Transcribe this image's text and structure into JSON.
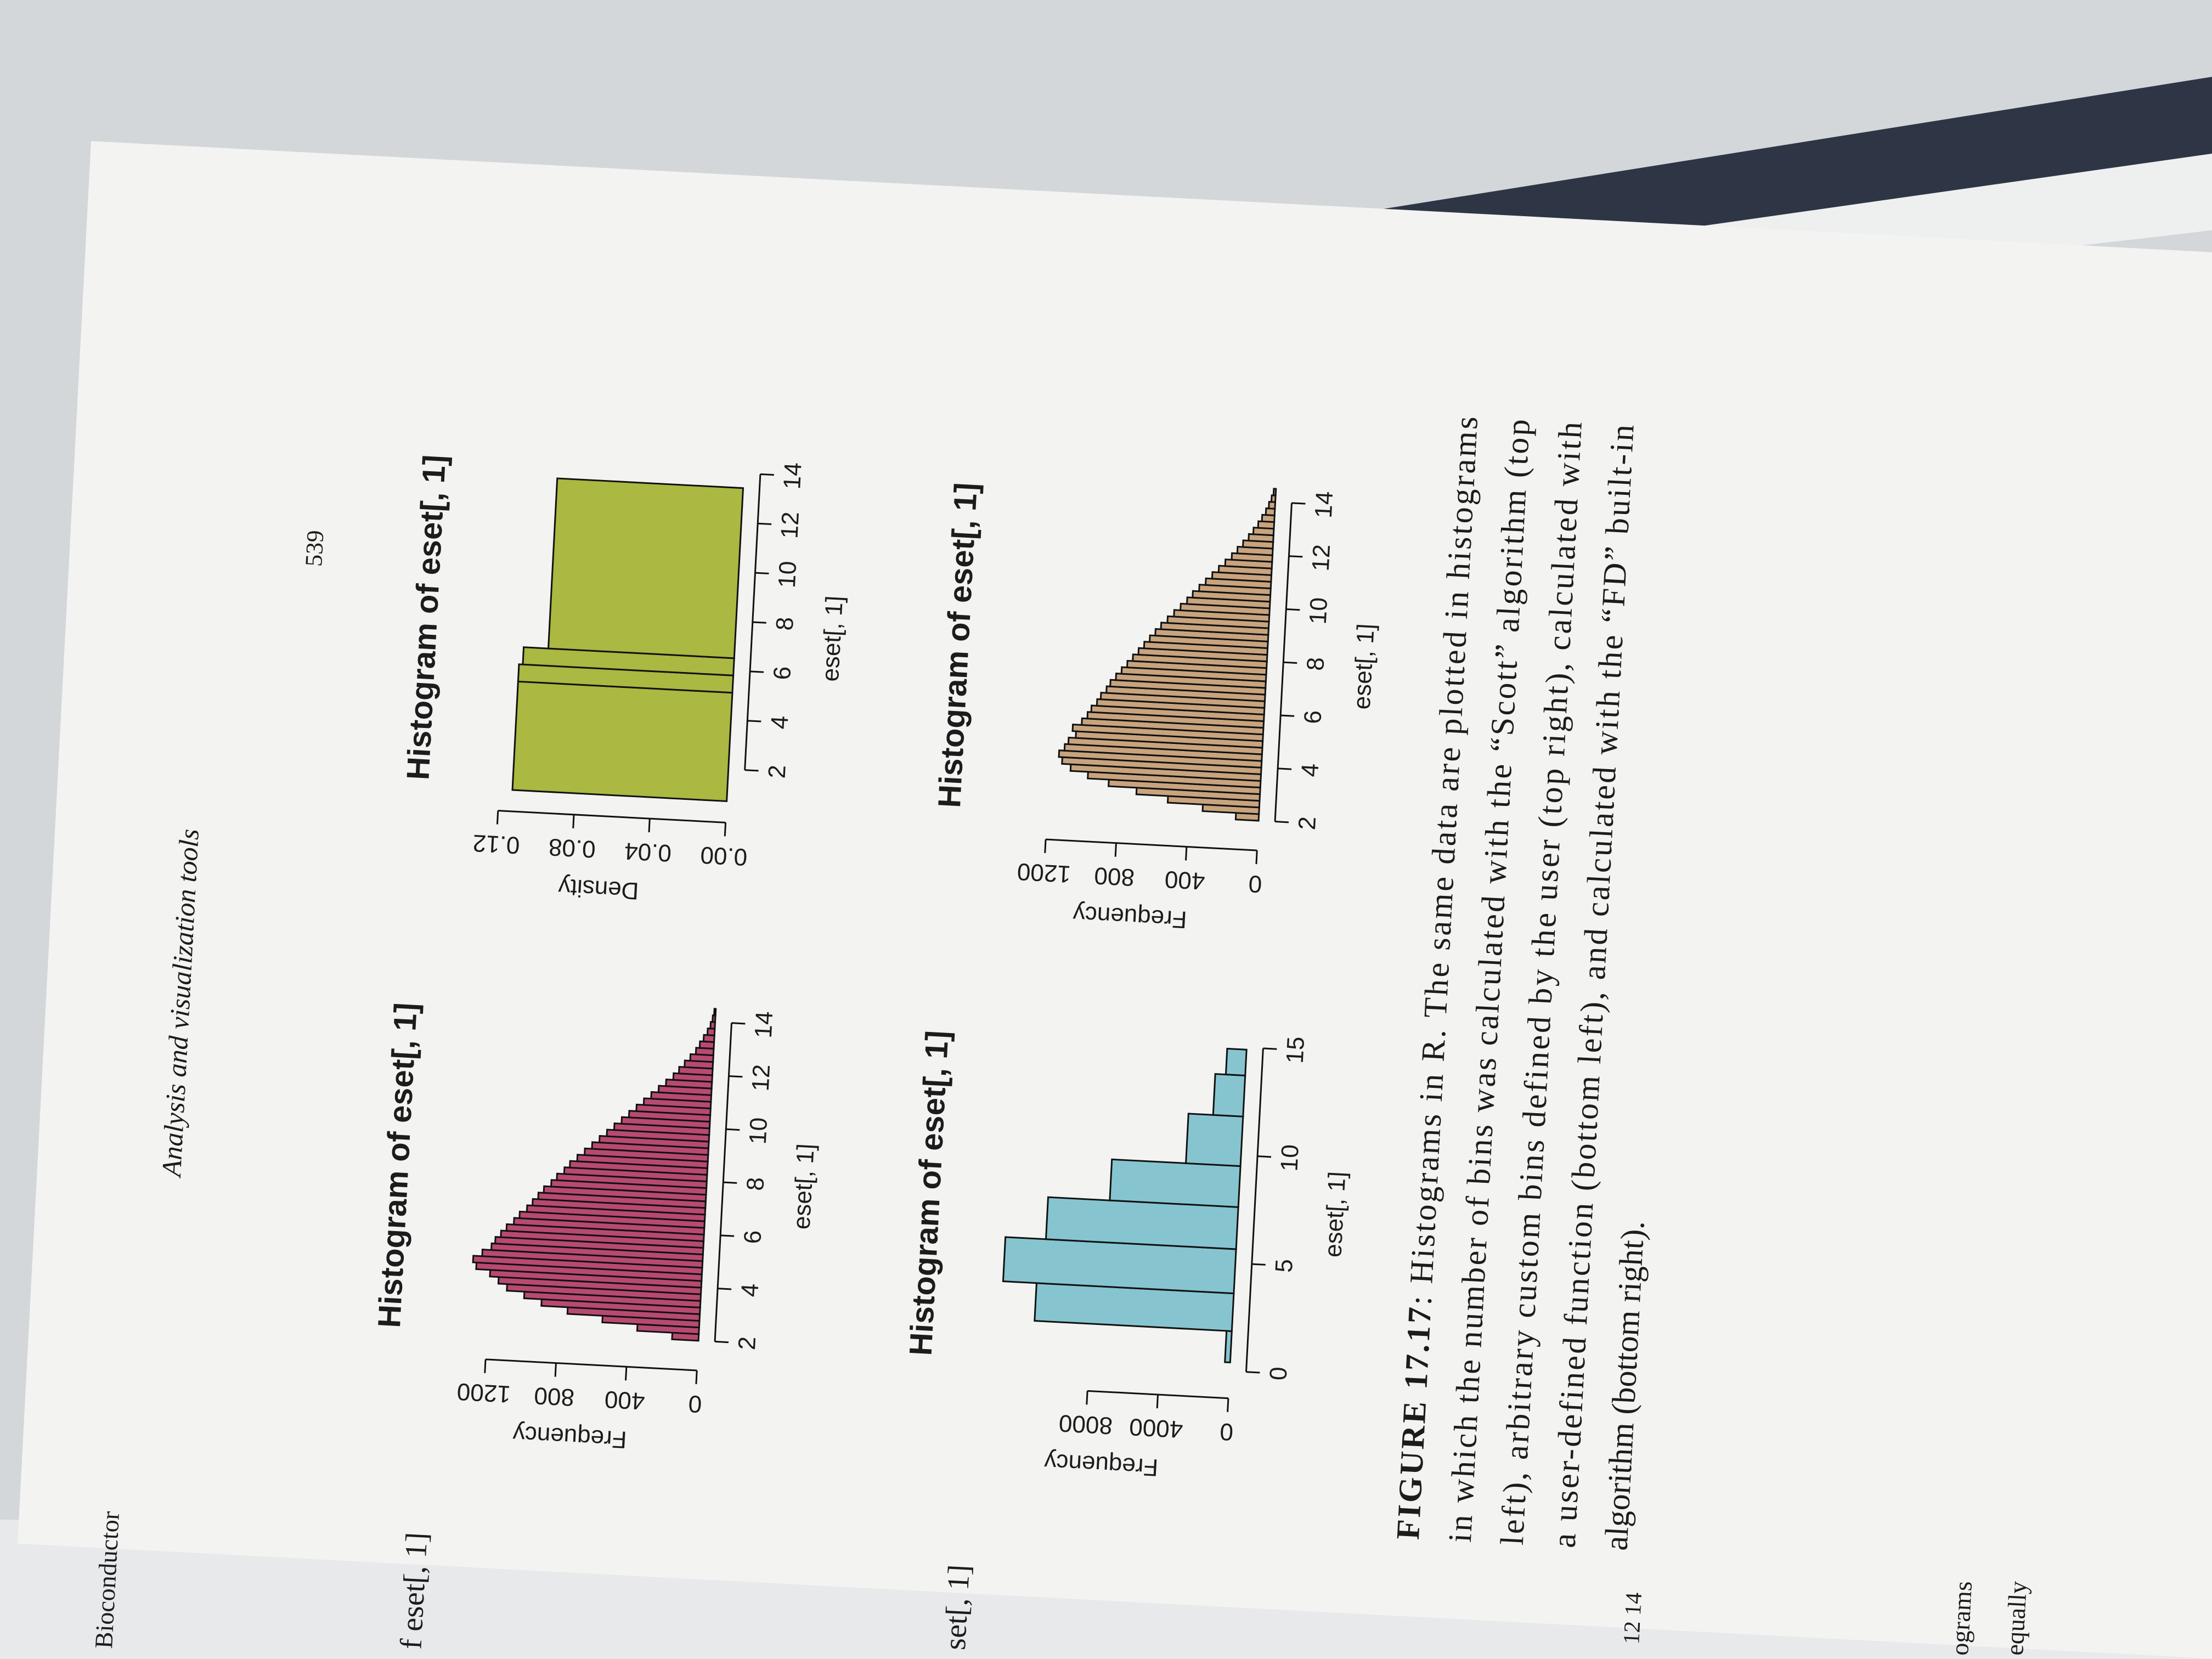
{
  "header": {
    "title": "Analysis and visualization tools",
    "page_number": "539"
  },
  "chart_data": [
    {
      "type": "histogram",
      "title": "Histogram of eset[, 1]",
      "x_label": "eset[, 1]",
      "y_label": "Frequency",
      "color": "#b84a72",
      "bins": [
        2,
        2.25,
        2.5,
        2.75,
        3,
        3.25,
        3.5,
        3.75,
        4,
        4.25,
        4.5,
        4.75,
        5,
        5.25,
        5.5,
        5.75,
        6,
        6.25,
        6.5,
        6.75,
        7,
        7.25,
        7.5,
        7.75,
        8,
        8.25,
        8.5,
        8.75,
        9,
        9.25,
        9.5,
        9.75,
        10,
        10.25,
        10.5,
        10.75,
        11,
        11.25,
        11.5,
        11.75,
        12,
        12.25,
        12.5,
        12.75,
        13,
        13.25,
        13.5,
        13.75,
        14,
        14.25,
        14.5
      ],
      "values": [
        150,
        350,
        550,
        750,
        900,
        1000,
        1100,
        1150,
        1200,
        1280,
        1300,
        1250,
        1200,
        1180,
        1150,
        1120,
        1080,
        1050,
        1010,
        980,
        950,
        920,
        880,
        850,
        810,
        780,
        740,
        700,
        660,
        620,
        580,
        540,
        500,
        460,
        420,
        380,
        340,
        300,
        260,
        220,
        190,
        160,
        130,
        100,
        80,
        60,
        40,
        25,
        15,
        8
      ],
      "xlim": [
        1.5,
        14.5
      ],
      "ylim": [
        0,
        1400
      ],
      "xticks": [
        2,
        4,
        6,
        8,
        10,
        12,
        14
      ],
      "yticks": [
        0,
        400,
        800,
        1200
      ]
    },
    {
      "type": "histogram",
      "title": "Histogram of eset[, 1]",
      "x_label": "eset[, 1]",
      "y_label": "Density",
      "color": "#abb841",
      "bins": [
        0.7,
        5.1,
        5.8,
        6.5,
        13.4
      ],
      "values": [
        0.113,
        0.113,
        0.111,
        0.098
      ],
      "xlim": [
        0.5,
        14.5
      ],
      "ylim": [
        0,
        0.13
      ],
      "xticks": [
        2,
        4,
        6,
        8,
        10,
        12,
        14
      ],
      "yticks": [
        {
          "value": 0,
          "label": "0.00"
        },
        0.04,
        0.08,
        0.12
      ]
    },
    {
      "type": "histogram",
      "title": "Histogram of eset[, 1]",
      "x_label": "eset[, 1]",
      "y_label": "Frequency",
      "color": "#86c5d0",
      "bins": [
        0.4,
        1.85,
        3.6,
        5.65,
        7.6,
        9.5,
        11.8,
        13.7,
        14.9
      ],
      "values": [
        300,
        11200,
        13100,
        10800,
        7300,
        3100,
        1700,
        1100
      ],
      "xlim": [
        -0.5,
        15.5
      ],
      "ylim": [
        0,
        14000
      ],
      "xticks": [
        0,
        5,
        10,
        15
      ],
      "yticks": [
        0,
        4000,
        8000
      ]
    },
    {
      "type": "histogram",
      "title": "Histogram of eset[, 1]",
      "x_label": "eset[, 1]",
      "y_label": "Frequency",
      "color": "#c8a47e",
      "bins": [
        2,
        2.25,
        2.5,
        2.75,
        3,
        3.25,
        3.5,
        3.75,
        4,
        4.25,
        4.5,
        4.75,
        5,
        5.25,
        5.5,
        5.75,
        6,
        6.25,
        6.5,
        6.75,
        7,
        7.25,
        7.5,
        7.75,
        8,
        8.25,
        8.5,
        8.75,
        9,
        9.25,
        9.5,
        9.75,
        10,
        10.25,
        10.5,
        10.75,
        11,
        11.25,
        11.5,
        11.75,
        12,
        12.25,
        12.5,
        12.75,
        13,
        13.25,
        13.5,
        13.75,
        14,
        14.25,
        14.5
      ],
      "values": [
        130,
        320,
        520,
        700,
        860,
        980,
        1080,
        1130,
        1150,
        1120,
        1100,
        1060,
        1080,
        1030,
        1000,
        980,
        950,
        930,
        900,
        880,
        850,
        820,
        790,
        760,
        730,
        700,
        670,
        640,
        610,
        575,
        540,
        505,
        470,
        440,
        405,
        370,
        335,
        300,
        265,
        230,
        200,
        170,
        140,
        115,
        90,
        70,
        50,
        35,
        22,
        12
      ],
      "xlim": [
        1.5,
        14.5
      ],
      "ylim": [
        0,
        1400
      ],
      "xticks": [
        2,
        4,
        6,
        8,
        10,
        12,
        14
      ],
      "yticks": [
        0,
        400,
        800,
        1200
      ]
    }
  ],
  "caption": {
    "label": "FIGURE 17.17",
    "lines": [
      ": Histograms in R. The same data are plotted in histograms",
      "in which the number of bins was calculated with the “Scott” algorithm (top",
      "left), arbitrary custom bins defined by the user (top right), calculated with",
      "a user-defined function (bottom left), and calculated with the “FD” built-in",
      "algorithm (bottom right)."
    ]
  },
  "left_page": {
    "texts": [
      "Bioconductor",
      "f eset[, 1]",
      "set[, 1]",
      "12  14",
      "ograms",
      "equally"
    ]
  }
}
